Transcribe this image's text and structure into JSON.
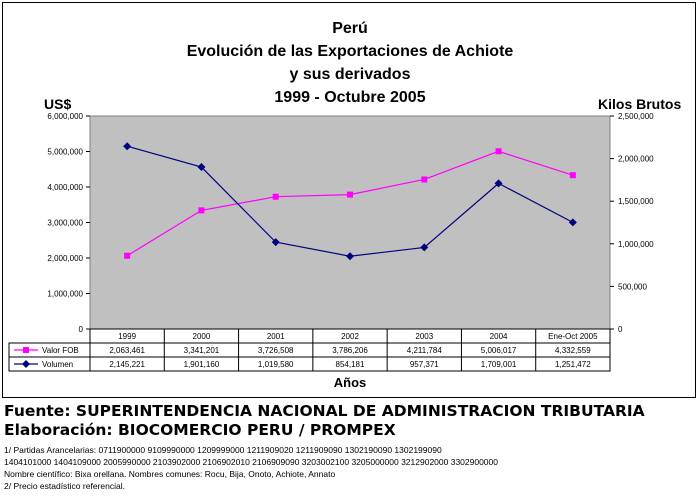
{
  "chart_data": {
    "type": "line",
    "title_lines": [
      "Perú",
      "Evolución de las Exportaciones de Achiote",
      "y sus derivados",
      "1999 - Octubre 2005"
    ],
    "ylabel_left": "US$",
    "ylabel_right": "Kilos Brutos",
    "xlabel": "Años",
    "categories": [
      "1999",
      "2000",
      "2001",
      "2002",
      "2003",
      "2004",
      "Ene-Oct 2005"
    ],
    "y_left_ticks": [
      "0",
      "1,000,000",
      "2,000,000",
      "3,000,000",
      "4,000,000",
      "5,000,000",
      "6,000,000"
    ],
    "y_right_ticks": [
      "0",
      "500,000",
      "1,000,000",
      "1,500,000",
      "2,000,000",
      "2,500,000"
    ],
    "ylim_left": [
      0,
      6000000
    ],
    "ylim_right": [
      0,
      2500000
    ],
    "grid": false,
    "series": [
      {
        "name": "Valor FOB",
        "axis": "left",
        "color": "#ff00ff",
        "marker": "square",
        "values": [
          2063461,
          3341201,
          3726508,
          3786206,
          4211784,
          5006017,
          4332559
        ],
        "labels": [
          "2,063,461",
          "3,341,201",
          "3,726,508",
          "3,786,206",
          "4,211,784",
          "5,006,017",
          "4,332,559"
        ]
      },
      {
        "name": "Volumen",
        "axis": "right",
        "color": "#000080",
        "marker": "diamond",
        "values": [
          2145221,
          1901160,
          1019580,
          854181,
          957371,
          1709001,
          1251472
        ],
        "labels": [
          "2,145,221",
          "1,901,160",
          "1,019,580",
          "854,181",
          "957,371",
          "1,709,001",
          "1,251,472"
        ]
      }
    ],
    "plot_background": "#c0c0c0"
  },
  "footer": {
    "fuente": "Fuente: SUPERINTENDENCIA NACIONAL DE ADMINISTRACION TRIBUTARIA",
    "elaboracion": "Elaboración: BIOCOMERCIO PERU / PROMPEX",
    "notes": [
      "1/ Partidas Arancelarias: 0711900000 9109990000 1209999000 1211909020 1211909090 1302190090  1302199090",
      "1404101000 1404109000 2005990000 2103902000 2106902010 2106909090 3203002100 3205000000 3212902000 3302900000",
      "Nombre científico: Bixa orellana. Nombres comunes: Rocu, Bija, Onoto, Achiote, Annato",
      "2/ Precio estadístico referencial."
    ]
  }
}
